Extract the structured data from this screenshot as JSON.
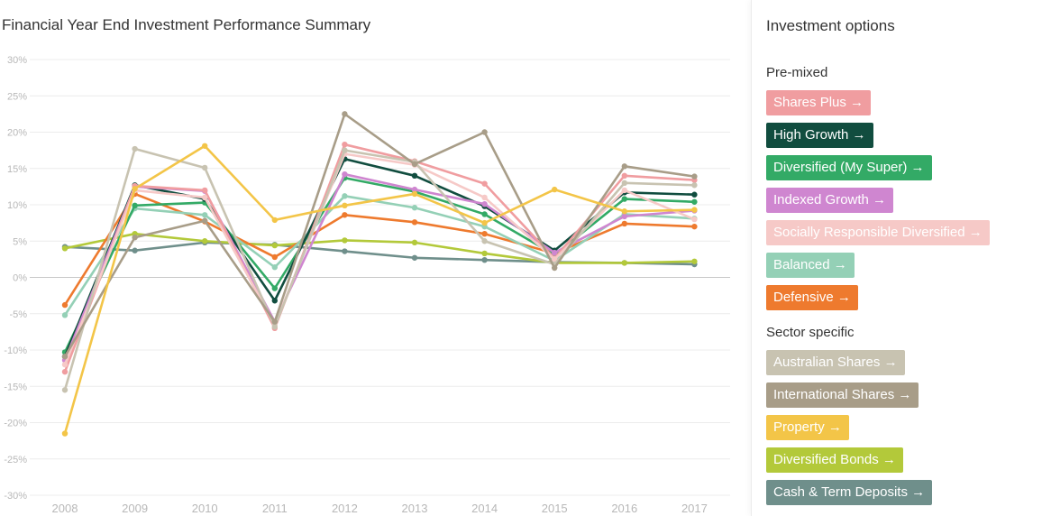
{
  "chart_data": {
    "type": "line",
    "title": "Financial Year End Investment Performance Summary",
    "x": [
      "2008",
      "2009",
      "2010",
      "2011",
      "2012",
      "2013",
      "2014",
      "2015",
      "2016",
      "2017"
    ],
    "ylim": [
      -30,
      30
    ],
    "yticks": [
      30,
      25,
      20,
      15,
      10,
      5,
      0,
      -5,
      -10,
      -15,
      -20,
      -25,
      -30
    ],
    "ytick_labels": [
      "30%",
      "25%",
      "20%",
      "15%",
      "10%",
      "5%",
      "0%",
      "-5%",
      "-10%",
      "-15%",
      "-20%",
      "-25%",
      "-30%"
    ],
    "grid": true,
    "legend": "right",
    "series": [
      {
        "name": "Cash & Term Deposits",
        "color": "#6f8f8b",
        "values": [
          4.2,
          3.7,
          4.8,
          4.5,
          3.6,
          2.7,
          2.4,
          2.1,
          2.0,
          1.8
        ]
      },
      {
        "name": "Diversified Bonds",
        "color": "#b3c93a",
        "values": [
          4.0,
          6.0,
          5.0,
          4.4,
          5.1,
          4.8,
          3.3,
          2.0,
          2.0,
          2.2
        ]
      },
      {
        "name": "Defensive",
        "color": "#ee7a2e",
        "values": [
          -3.8,
          11.5,
          7.7,
          2.8,
          8.6,
          7.6,
          6.0,
          3.3,
          7.4,
          7.0
        ]
      },
      {
        "name": "Balanced",
        "color": "#94d0b6",
        "values": [
          -5.2,
          9.5,
          8.6,
          1.4,
          11.2,
          9.6,
          7.0,
          2.3,
          8.7,
          8.1
        ]
      },
      {
        "name": "Diversified (My Super)",
        "color": "#33aa66",
        "values": [
          -10.3,
          9.9,
          10.3,
          -1.5,
          13.7,
          11.8,
          8.7,
          3.1,
          10.8,
          10.4
        ]
      },
      {
        "name": "High Growth",
        "color": "#114d3f",
        "values": [
          -10.9,
          12.7,
          10.8,
          -3.2,
          16.3,
          14.0,
          9.8,
          3.7,
          11.7,
          11.4
        ]
      },
      {
        "name": "Indexed Growth",
        "color": "#cf86d0",
        "values": [
          -11.4,
          12.5,
          11.9,
          -6.1,
          14.2,
          12.1,
          10.1,
          3.4,
          8.4,
          9.2
        ]
      },
      {
        "name": "Shares Plus",
        "color": "#f09da0",
        "values": [
          -13.0,
          12.6,
          12.0,
          -7.0,
          18.3,
          16.0,
          12.9,
          2.6,
          14.0,
          13.4
        ]
      },
      {
        "name": "Socially Responsible Diversified",
        "color": "#f6c9c7",
        "values": [
          -12.0,
          12.0,
          11.0,
          -6.5,
          17.0,
          15.5,
          11.0,
          2.5,
          12.0,
          8.0
        ]
      },
      {
        "name": "Australian Shares",
        "color": "#c8c3b1",
        "values": [
          -15.5,
          17.7,
          15.1,
          -6.8,
          17.5,
          15.9,
          5.0,
          1.8,
          13.0,
          12.7
        ]
      },
      {
        "name": "International Shares",
        "color": "#a89d88",
        "values": [
          -10.9,
          5.5,
          7.8,
          -6.1,
          22.5,
          15.6,
          20.0,
          1.3,
          15.3,
          13.9
        ]
      },
      {
        "name": "Property",
        "color": "#f3c548",
        "values": [
          -21.5,
          12.2,
          18.1,
          7.9,
          9.9,
          11.5,
          7.5,
          12.1,
          9.1,
          9.3
        ]
      }
    ]
  },
  "panel": {
    "title": "Investment options",
    "groups": [
      {
        "label": "Pre-mixed",
        "options": [
          {
            "label": "Shares Plus →",
            "color": "#f09da0"
          },
          {
            "label": "High Growth →",
            "color": "#114d3f"
          },
          {
            "label": "Diversified (My Super) →",
            "color": "#33aa66"
          },
          {
            "label": "Indexed Growth →",
            "color": "#cf86d0"
          },
          {
            "label": "Socially Responsible Diversified →",
            "color": "#f6c9c7"
          },
          {
            "label": "Balanced →",
            "color": "#94d0b6"
          },
          {
            "label": "Defensive →",
            "color": "#ee7a2e"
          }
        ]
      },
      {
        "label": "Sector specific",
        "options": [
          {
            "label": "Australian Shares →",
            "color": "#c8c3b1"
          },
          {
            "label": "International Shares →",
            "color": "#a89d88"
          },
          {
            "label": "Property →",
            "color": "#f3c548"
          },
          {
            "label": "Diversified Bonds →",
            "color": "#b3c93a"
          },
          {
            "label": "Cash & Term Deposits →",
            "color": "#6f8f8b"
          }
        ]
      }
    ]
  }
}
